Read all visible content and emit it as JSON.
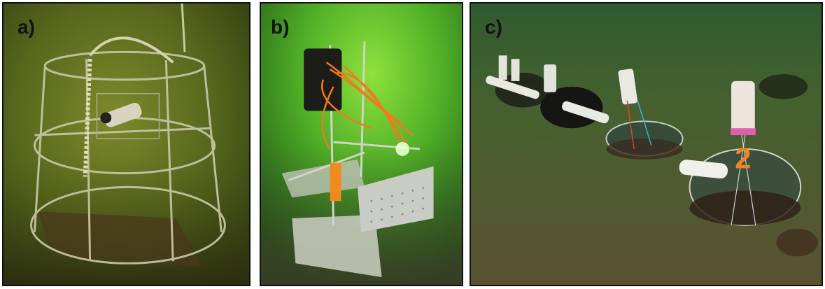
{
  "figure": {
    "panels": [
      {
        "id": "a",
        "label": "a)",
        "subject": "weighted-cage-frame-with-sensor",
        "dominant_color": "#5b6a1c"
      },
      {
        "id": "b",
        "label": "b)",
        "subject": "benthic-lander-with-cables",
        "dominant_color": "#4fae27"
      },
      {
        "id": "c",
        "label": "c)",
        "subject": "benthic-chambers-on-seafloor",
        "dominant_color": "#3f5a2f",
        "chamber_number": "2"
      }
    ]
  }
}
